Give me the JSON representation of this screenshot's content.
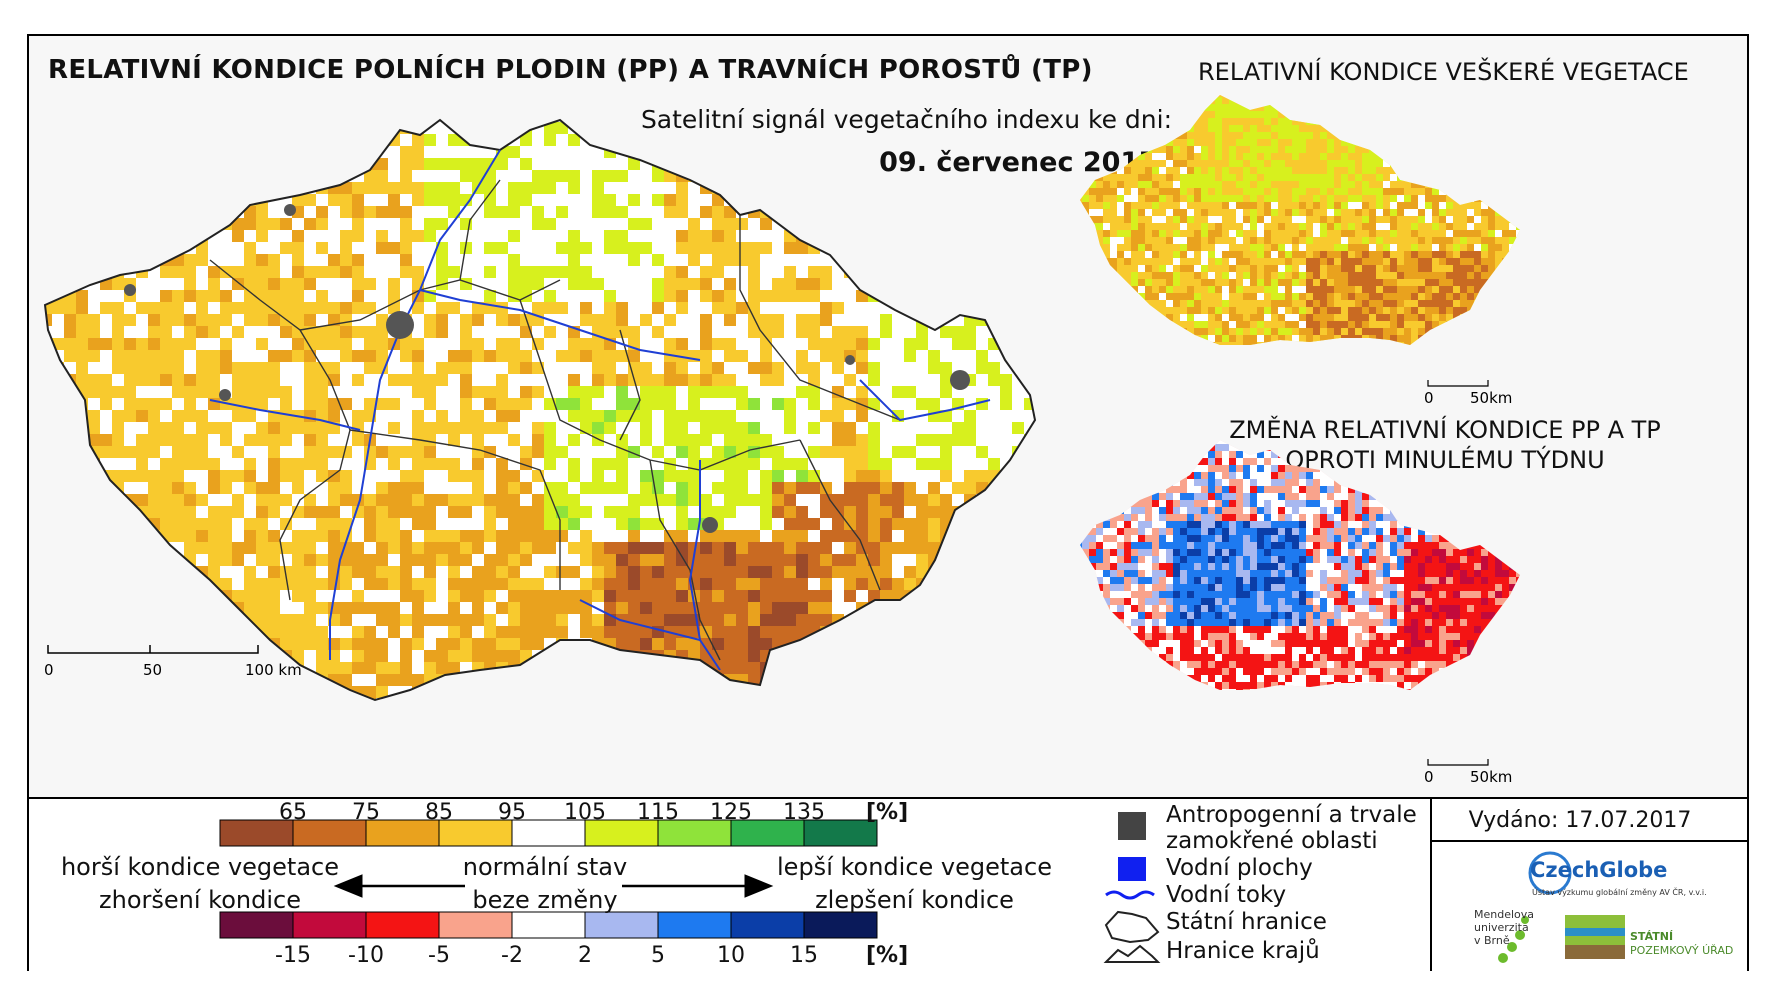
{
  "header": {
    "title": "RELATIVNÍ KONDICE POLNÍCH PLODIN (PP) A TRAVNÍCH POROSTŮ (TP)",
    "subtitle": "Satelitní signál vegetačního indexu ke dni:",
    "date": "09. červenec 2017"
  },
  "inset_top": {
    "title": "RELATIVNÍ KONDICE VEŠKERÉ VEGETACE",
    "scale": [
      "0",
      "50km"
    ]
  },
  "inset_bottom": {
    "title_line1": "ZMĚNA RELATIVNÍ KONDICE PP A TP",
    "title_line2": "OPROTI MINULÉMU TÝDNU",
    "scale": [
      "0",
      "50km"
    ]
  },
  "main_scale": [
    "0",
    "50",
    "100 km"
  ],
  "legend": {
    "condition_labels": [
      "65",
      "75",
      "85",
      "95",
      "105",
      "115",
      "125",
      "135"
    ],
    "condition_unit": "[%]",
    "condition_colors": [
      "#9b4a2a",
      "#c96a22",
      "#e9a21e",
      "#f8ca2e",
      "#ffffff",
      "#d7f01e",
      "#8fe33a",
      "#2fb24c",
      "#13794a"
    ],
    "change_labels": [
      "-15",
      "-10",
      "-5",
      "-2",
      "2",
      "5",
      "10",
      "15"
    ],
    "change_unit": "[%]",
    "change_colors": [
      "#6b0d3c",
      "#c20a3c",
      "#f41414",
      "#f9a38c",
      "#ffffff",
      "#a8b8f0",
      "#1e7af0",
      "#0b3ea8",
      "#0a1a5a"
    ],
    "worse_line1": "horší kondice vegetace",
    "worse_line2": "zhoršení kondice",
    "normal_line1": "normální stav",
    "normal_line2": "beze změny",
    "better_line1": "lepší kondice vegetace",
    "better_line2": "zlepšení kondice",
    "items": {
      "anthropogenic_line1": "Antropogenní a trvale",
      "anthropogenic_line2": "zamokřené oblasti",
      "water_bodies": "Vodní plochy",
      "rivers": "Vodní toky",
      "state_border": "Státní hranice",
      "region_border": "Hranice krajů"
    }
  },
  "footer": {
    "released": "Vydáno: 17.07.2017",
    "logo1": "CzechGlobe",
    "logo1_sub": "Ústav výzkumu globální změny AV ČR, v.v.i.",
    "logo2_line1": "Mendelova",
    "logo2_line2": "univerzita",
    "logo2_line3": "v Brně",
    "logo3_line1": "STÁTNÍ",
    "logo3_line2": "POZEMKOVÝ ÚŘAD"
  }
}
